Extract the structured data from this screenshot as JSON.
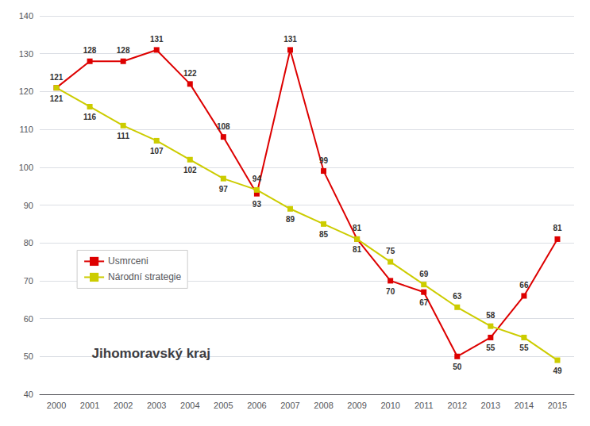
{
  "chart_data": {
    "type": "line",
    "title": "Jihomoravský kraj",
    "categories": [
      "2000",
      "2001",
      "2002",
      "2003",
      "2004",
      "2005",
      "2006",
      "2007",
      "2008",
      "2009",
      "2010",
      "2011",
      "2012",
      "2013",
      "2014",
      "2015"
    ],
    "series": [
      {
        "name": "Usmrceni",
        "color": "#dd0000",
        "marker": "square",
        "values": [
          121,
          128,
          128,
          131,
          122,
          108,
          93,
          131,
          99,
          81,
          70,
          67,
          50,
          55,
          66,
          81
        ]
      },
      {
        "name": "Národní strategie",
        "color": "#cccc00",
        "marker": "square",
        "values": [
          121,
          116,
          111,
          107,
          102,
          97,
          94,
          89,
          85,
          81,
          75,
          69,
          63,
          58,
          55,
          49
        ]
      }
    ],
    "ylim": [
      40,
      140
    ],
    "yticks": [
      40,
      50,
      60,
      70,
      80,
      90,
      100,
      110,
      120,
      130,
      140
    ],
    "grid": true,
    "legend": "lower left",
    "data_labels": true
  }
}
